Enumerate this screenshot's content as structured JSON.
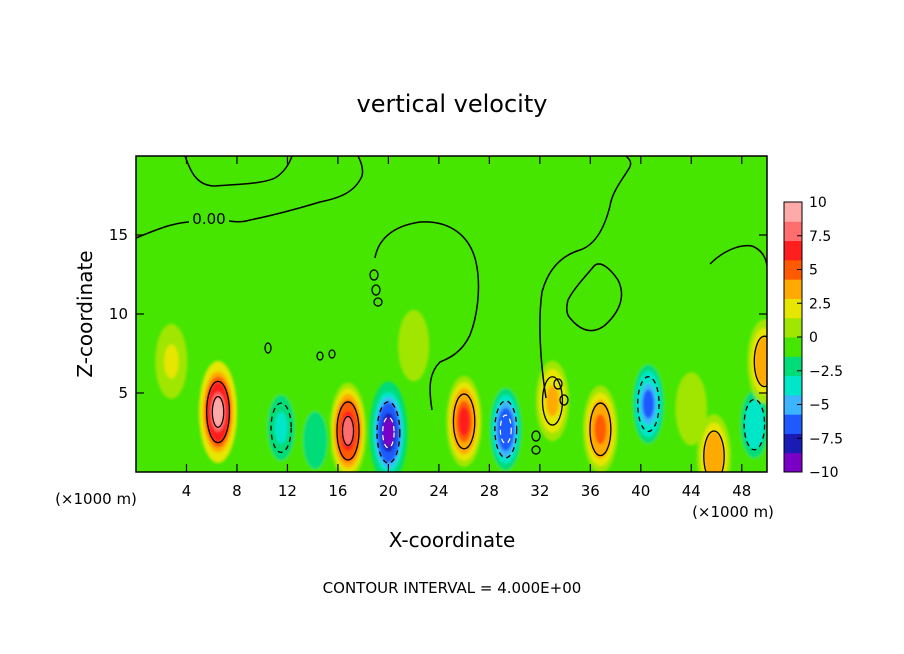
{
  "chart_data": {
    "type": "heatmap",
    "title": "vertical velocity",
    "xlabel": "X-coordinate",
    "ylabel": "Z-coordinate",
    "x_unit_left": "(×1000 m)",
    "x_unit_right": "(×1000 m)",
    "xlim": [
      0,
      50
    ],
    "ylim": [
      0,
      20
    ],
    "x_ticks": [
      4,
      8,
      12,
      16,
      20,
      24,
      28,
      32,
      36,
      40,
      44,
      48
    ],
    "y_ticks": [
      5,
      10,
      15
    ],
    "colorbar": {
      "range": [
        -10,
        10
      ],
      "tick_values": [
        10,
        7.5,
        5,
        2.5,
        0,
        -2.5,
        -5,
        -7.5,
        -10
      ],
      "tick_labels": [
        "10",
        "7.5",
        "5",
        "2.5",
        "0",
        "−2.5",
        "−5",
        "−7.5",
        "−10"
      ],
      "colors": [
        "#7a00c8",
        "#1a1ab4",
        "#1e5aff",
        "#3cb4ff",
        "#00e6c8",
        "#00dc78",
        "#46e600",
        "#a0e600",
        "#e6e600",
        "#ffaa00",
        "#ff5a00",
        "#ff1e1e",
        "#ff6e6e",
        "#ffaaaa"
      ]
    },
    "contour_label": "0.00",
    "features": [
      {
        "x": 6.5,
        "z": 3.8,
        "w": 10
      },
      {
        "x": 16.8,
        "z": 2.6,
        "w": 8.5
      },
      {
        "x": 26.0,
        "z": 3.2,
        "w": 7
      },
      {
        "x": 36.8,
        "z": 2.7,
        "w": 6
      },
      {
        "x": 20.0,
        "z": 2.5,
        "w": -10
      },
      {
        "x": 29.3,
        "z": 2.7,
        "w": -8
      },
      {
        "x": 40.6,
        "z": 4.3,
        "w": -7
      },
      {
        "x": 11.5,
        "z": 2.8,
        "w": -4.5
      },
      {
        "x": 49.0,
        "z": 3.0,
        "w": -5
      },
      {
        "x": 14.2,
        "z": 2.0,
        "w": -3.5
      },
      {
        "x": 49.8,
        "z": 7.0,
        "w": 5
      },
      {
        "x": 45.8,
        "z": 1.0,
        "w": 5
      },
      {
        "x": 33.0,
        "z": 4.5,
        "w": 4
      },
      {
        "x": 2.8,
        "z": 7.0,
        "w": 2.5
      },
      {
        "x": 22.0,
        "z": 8.0,
        "w": 1.5
      },
      {
        "x": 44.0,
        "z": 4.0,
        "w": 2
      }
    ],
    "footer": "CONTOUR INTERVAL = 4.000E+00"
  }
}
